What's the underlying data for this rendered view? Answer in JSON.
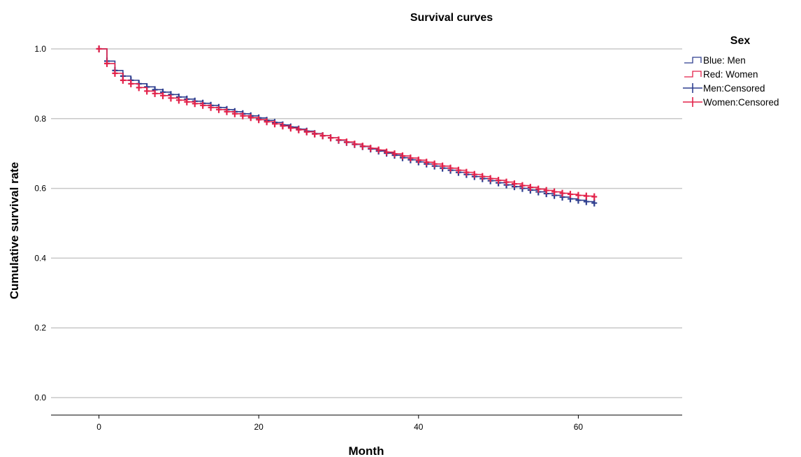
{
  "chart_data": {
    "type": "line",
    "subtype": "kaplan-meier-step",
    "title": "Survival curves",
    "xlabel": "Month",
    "ylabel": "Cumulative survival rate",
    "xlim": [
      -6,
      73
    ],
    "ylim": [
      -0.05,
      1.06
    ],
    "xticks": [
      0,
      20,
      40,
      60
    ],
    "yticks": [
      0.0,
      0.2,
      0.4,
      0.6,
      0.8,
      1.0
    ],
    "ytick_labels": [
      "0.0",
      "0.2",
      "0.4",
      "0.6",
      "0.8",
      "1.0"
    ],
    "grid": "horizontal",
    "legend": {
      "title": "Sex",
      "position": "right",
      "entries": [
        {
          "label": "Blue: Men",
          "kind": "line",
          "color": "#2f3f8f"
        },
        {
          "label": "Red: Women",
          "kind": "line",
          "color": "#e3224a"
        },
        {
          "label": "Men:Censored",
          "kind": "censor",
          "color": "#2f3f8f"
        },
        {
          "label": "Women:Censored",
          "kind": "censor",
          "color": "#e3224a"
        }
      ]
    },
    "series": [
      {
        "name": "Men",
        "color": "#2f3f8f",
        "x": [
          0,
          1,
          2,
          3,
          4,
          5,
          6,
          7,
          8,
          9,
          10,
          11,
          12,
          13,
          14,
          15,
          16,
          17,
          18,
          19,
          20,
          21,
          22,
          23,
          24,
          25,
          26,
          27,
          28,
          29,
          30,
          31,
          32,
          33,
          34,
          35,
          36,
          37,
          38,
          39,
          40,
          41,
          42,
          43,
          44,
          45,
          46,
          47,
          48,
          49,
          50,
          51,
          52,
          53,
          54,
          55,
          56,
          57,
          58,
          59,
          60,
          61,
          62
        ],
        "y": [
          1.0,
          0.965,
          0.938,
          0.922,
          0.91,
          0.9,
          0.891,
          0.883,
          0.876,
          0.869,
          0.862,
          0.856,
          0.85,
          0.844,
          0.838,
          0.832,
          0.826,
          0.82,
          0.814,
          0.808,
          0.802,
          0.795,
          0.789,
          0.782,
          0.776,
          0.77,
          0.764,
          0.757,
          0.751,
          0.745,
          0.738,
          0.732,
          0.726,
          0.72,
          0.713,
          0.707,
          0.701,
          0.695,
          0.688,
          0.682,
          0.676,
          0.67,
          0.664,
          0.658,
          0.652,
          0.646,
          0.64,
          0.634,
          0.628,
          0.622,
          0.616,
          0.61,
          0.605,
          0.6,
          0.595,
          0.59,
          0.585,
          0.58,
          0.575,
          0.57,
          0.566,
          0.562,
          0.558
        ]
      },
      {
        "name": "Women",
        "color": "#e3224a",
        "x": [
          0,
          1,
          2,
          3,
          4,
          5,
          6,
          7,
          8,
          9,
          10,
          11,
          12,
          13,
          14,
          15,
          16,
          17,
          18,
          19,
          20,
          21,
          22,
          23,
          24,
          25,
          26,
          27,
          28,
          29,
          30,
          31,
          32,
          33,
          34,
          35,
          36,
          37,
          38,
          39,
          40,
          41,
          42,
          43,
          44,
          45,
          46,
          47,
          48,
          49,
          50,
          51,
          52,
          53,
          54,
          55,
          56,
          57,
          58,
          59,
          60,
          61,
          62
        ],
        "y": [
          1.0,
          0.958,
          0.93,
          0.91,
          0.9,
          0.889,
          0.879,
          0.872,
          0.866,
          0.859,
          0.853,
          0.848,
          0.843,
          0.838,
          0.832,
          0.826,
          0.82,
          0.814,
          0.808,
          0.803,
          0.797,
          0.791,
          0.785,
          0.779,
          0.773,
          0.768,
          0.762,
          0.756,
          0.751,
          0.745,
          0.739,
          0.733,
          0.727,
          0.721,
          0.715,
          0.71,
          0.704,
          0.699,
          0.693,
          0.687,
          0.681,
          0.675,
          0.67,
          0.664,
          0.658,
          0.652,
          0.646,
          0.64,
          0.634,
          0.628,
          0.623,
          0.618,
          0.613,
          0.608,
          0.603,
          0.598,
          0.594,
          0.59,
          0.586,
          0.583,
          0.58,
          0.578,
          0.576
        ]
      }
    ]
  }
}
